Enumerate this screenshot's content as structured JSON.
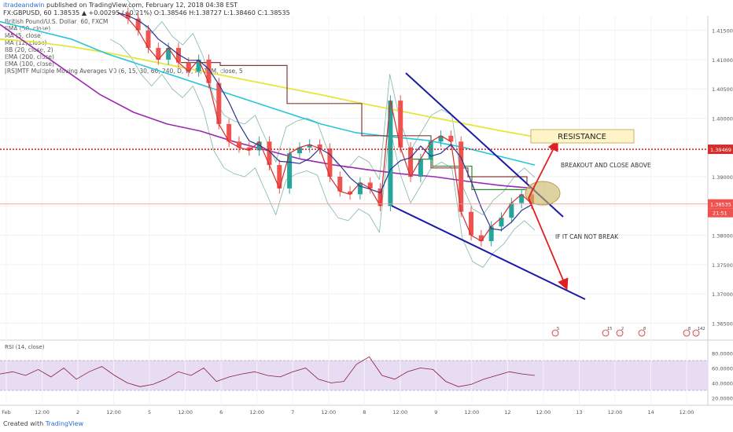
{
  "header": {
    "author": "itradeandwin",
    "published": "published on TradingView.com, February 12, 2018 04:38 EST",
    "symbol_line": "FX:GBPUSD, 60  1.38535 ▲ +0.00295 (+0.21%) O:1.38546 H:1.38727 L:1.38460 C:1.38535"
  },
  "indicators": [
    "British Pound/U.S. Dollar, 60, FXCM",
    "EMA (50, close)",
    "MA (5, close)",
    "MA (12, close)",
    "BB (20, close, 2)",
    "EMA (200, close)",
    "EMA (100, close)",
    "[RS]MTF Multiple Moving Averages V0 (6, 15, 30, 60, 240, D, W, M, 12M, close, 5"
  ],
  "rsi_label": "RSI (14, close)",
  "footer": {
    "created_with": "Created with",
    "brand": "TradingView"
  },
  "colors": {
    "candle_up": "#26a69a",
    "candle_down": "#ef5350",
    "ema50": "#9c27b0",
    "ema100": "#26c6da",
    "ema200": "#e6e63a",
    "ma5": "#d32f2f",
    "ma12": "#283593",
    "mtf_a": "#8b3a3a",
    "mtf_b": "#2e8b2e",
    "bb": "#7fb7a8",
    "trend": "#1a1aa8",
    "arrow": "#e02020",
    "resistance_line": "#d32f2f",
    "rsi_line": "#8b1a3a",
    "rsi_band": "#e8dcf3"
  },
  "chart_data": [
    {
      "type": "line",
      "title": "",
      "ylim": [
        1.3625,
        1.4175
      ],
      "y_ticks": [
        "1.41500",
        "1.41000",
        "1.40500",
        "1.40000",
        "1.39500",
        "1.39000",
        "1.38500",
        "1.38000",
        "1.37500",
        "1.37000",
        "1.36500"
      ],
      "x_ticks": [
        "Feb",
        "12:00",
        "2",
        "12:00",
        "5",
        "12:00",
        "6",
        "12:00",
        "7",
        "12:00",
        "8",
        "12:00",
        "9",
        "12:00",
        "12",
        "12:00",
        "13",
        "12:00",
        "14",
        "12:00"
      ],
      "resistance_price": 1.39469,
      "resistance_price_label": "1.39469",
      "last_price": 1.38535,
      "last_price_label": "1.38535",
      "countdown_label": "21:51",
      "series": [
        {
          "role": "price",
          "y": [
            1.418,
            1.417,
            1.415,
            1.412,
            1.41,
            1.412,
            1.4095,
            1.408,
            1.41,
            1.406,
            1.399,
            1.396,
            1.395,
            1.3945,
            1.396,
            1.392,
            1.388,
            1.394,
            1.395,
            1.3955,
            1.3948,
            1.39,
            1.3875,
            1.387,
            1.389,
            1.388,
            1.385,
            1.403,
            1.395,
            1.39,
            1.393,
            1.396,
            1.397,
            1.396,
            1.384,
            1.38,
            1.379,
            1.3815,
            1.383,
            1.3855,
            1.387,
            1.38535
          ]
        },
        {
          "role": "ema200",
          "y": [
            1.4135,
            1.413,
            1.4122,
            1.4112,
            1.41,
            1.4088,
            1.4076,
            1.4064,
            1.4052,
            1.404,
            1.4027,
            1.4015,
            1.4003,
            1.3991,
            1.3979,
            1.3968
          ]
        },
        {
          "role": "ema100",
          "y": [
            1.4165,
            1.415,
            1.4135,
            1.411,
            1.409,
            1.407,
            1.405,
            1.403,
            1.401,
            1.399,
            1.3975,
            1.3968,
            1.3962,
            1.395,
            1.3935,
            1.392
          ]
        },
        {
          "role": "ema50",
          "y": [
            1.416,
            1.412,
            1.408,
            1.404,
            1.401,
            1.399,
            1.3978,
            1.396,
            1.3945,
            1.393,
            1.392,
            1.3912,
            1.3905,
            1.39,
            1.3892,
            1.3885,
            1.388
          ]
        }
      ]
    },
    {
      "type": "line",
      "title": "",
      "ylim": [
        10,
        90
      ],
      "y_ticks": [
        "80.0000",
        "60.0000",
        "40.0000",
        "20.0000"
      ],
      "band": [
        30,
        70
      ],
      "series": [
        {
          "role": "rsi",
          "y": [
            52,
            55,
            50,
            58,
            48,
            60,
            45,
            55,
            62,
            50,
            40,
            35,
            38,
            45,
            55,
            50,
            60,
            42,
            48,
            52,
            55,
            50,
            48,
            55,
            60,
            45,
            40,
            42,
            65,
            75,
            50,
            45,
            55,
            60,
            58,
            42,
            35,
            38,
            45,
            50,
            55,
            52,
            50
          ]
        }
      ]
    }
  ],
  "annotations": {
    "resistance": "RESISTANCE",
    "breakout": "BREAKOUT AND CLOSE ABOVE",
    "cannot_break": "IF IT CAN NOT BREAK"
  },
  "events": [
    "5",
    "15",
    "2",
    "8",
    "8",
    "142"
  ]
}
